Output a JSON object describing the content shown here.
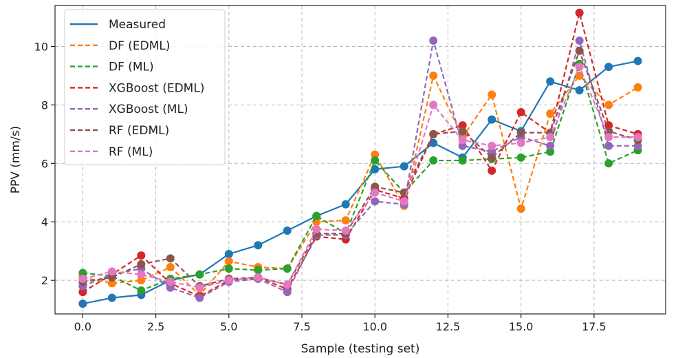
{
  "chart_data": {
    "type": "line",
    "xlabel": "Sample (testing set)",
    "ylabel": "PPV (mm/s)",
    "xlim": [
      -0.95,
      19.95
    ],
    "ylim": [
      0.85,
      11.4
    ],
    "xticks": [
      0.0,
      2.5,
      5.0,
      7.5,
      10.0,
      12.5,
      15.0,
      17.5
    ],
    "xtick_labels": [
      "0.0",
      "2.5",
      "5.0",
      "7.5",
      "10.0",
      "12.5",
      "15.0",
      "17.5"
    ],
    "yticks": [
      2,
      4,
      6,
      8,
      10
    ],
    "ytick_labels": [
      "2",
      "4",
      "6",
      "8",
      "10"
    ],
    "grid": true,
    "legend_position": "top-left",
    "x": [
      0,
      1,
      2,
      3,
      4,
      5,
      6,
      7,
      8,
      9,
      10,
      11,
      12,
      13,
      14,
      15,
      16,
      17,
      18,
      19
    ],
    "series": [
      {
        "name": "Measured",
        "color": "#1f77b4",
        "style": "solid",
        "values": [
          1.2,
          1.4,
          1.5,
          2.0,
          2.2,
          2.9,
          3.2,
          3.7,
          4.2,
          4.6,
          5.8,
          5.9,
          6.7,
          6.2,
          7.5,
          7.1,
          8.8,
          8.5,
          9.3,
          9.5
        ]
      },
      {
        "name": "DF (EDML)",
        "color": "#ff7f0e",
        "style": "dashed",
        "values": [
          2.1,
          1.9,
          2.0,
          2.45,
          1.5,
          2.65,
          2.45,
          2.4,
          4.0,
          4.05,
          6.3,
          4.55,
          9.0,
          6.9,
          8.35,
          4.45,
          7.7,
          9.0,
          8.0,
          8.6
        ]
      },
      {
        "name": "DF (ML)",
        "color": "#2ca02c",
        "style": "dashed",
        "values": [
          2.25,
          2.15,
          1.65,
          2.05,
          2.2,
          2.4,
          2.35,
          2.4,
          4.2,
          3.6,
          6.1,
          5.0,
          6.1,
          6.1,
          6.15,
          6.2,
          6.4,
          9.4,
          6.0,
          6.45
        ]
      },
      {
        "name": "XGBoost (EDML)",
        "color": "#d62728",
        "style": "dashed",
        "values": [
          1.6,
          2.2,
          2.85,
          1.9,
          1.45,
          2.0,
          2.1,
          1.7,
          3.5,
          3.4,
          5.1,
          4.8,
          7.0,
          7.3,
          5.75,
          7.75,
          7.05,
          11.15,
          7.3,
          7.0
        ]
      },
      {
        "name": "XGBoost (ML)",
        "color": "#9467bd",
        "style": "dashed",
        "values": [
          1.8,
          2.2,
          2.4,
          1.75,
          1.4,
          1.95,
          2.05,
          1.6,
          3.55,
          3.55,
          4.7,
          4.6,
          10.2,
          6.6,
          6.4,
          6.9,
          6.6,
          10.2,
          6.6,
          6.6
        ]
      },
      {
        "name": "RF (EDML)",
        "color": "#8c564b",
        "style": "dashed",
        "values": [
          1.95,
          2.1,
          2.55,
          2.75,
          1.8,
          2.05,
          2.1,
          1.85,
          3.6,
          3.6,
          5.2,
          5.0,
          7.0,
          7.1,
          6.2,
          7.05,
          7.05,
          9.85,
          7.1,
          6.8
        ]
      },
      {
        "name": "RF (ML)",
        "color": "#e377c2",
        "style": "dashed",
        "values": [
          2.05,
          2.3,
          2.2,
          1.95,
          1.75,
          2.0,
          2.1,
          1.85,
          3.75,
          3.7,
          5.0,
          4.7,
          8.0,
          6.8,
          6.6,
          6.7,
          6.9,
          9.3,
          6.9,
          6.9
        ]
      }
    ]
  }
}
